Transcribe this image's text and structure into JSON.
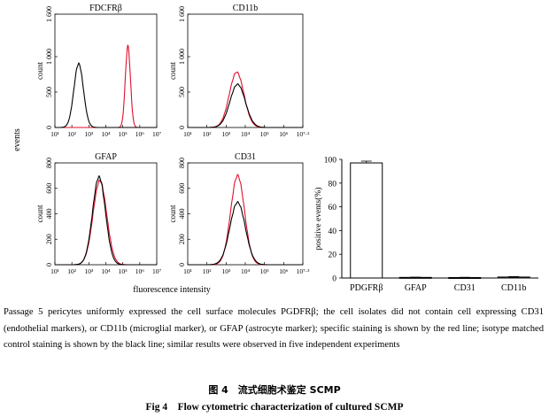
{
  "figure": {
    "y_axis_label": "events",
    "x_axis_label": "fluorescence intensity",
    "panels": [
      {
        "title": "FDCFRβ",
        "ylabel": "count",
        "yticks": [
          "0",
          "500",
          "1 000",
          "1 600"
        ],
        "xticks": [
          "10¹",
          "10²",
          "10³",
          "10⁴",
          "10⁵",
          "10⁶",
          "10⁷"
        ],
        "xlast_super": "7",
        "ymax": 1600,
        "yticks_values": [
          0,
          500,
          1000,
          1600
        ],
        "black_peak": {
          "center": 2.4,
          "width": 0.28,
          "height": 900
        },
        "red_peak": {
          "center": 5.3,
          "width": 0.15,
          "height": 1150
        }
      },
      {
        "title": "CD11b",
        "ylabel": "count",
        "yticks": [
          "0",
          "500",
          "1 000",
          "1 600"
        ],
        "xticks": [
          "10¹",
          "10²",
          "10³",
          "10⁴",
          "10⁵",
          "10⁶",
          "10⁷·²"
        ],
        "xlast_super": "7.2",
        "ymax": 1600,
        "yticks_values": [
          0,
          500,
          1000,
          1600
        ],
        "black_peak": {
          "center": 3.6,
          "width": 0.4,
          "height": 610
        },
        "red_peak": {
          "center": 3.55,
          "width": 0.38,
          "height": 780
        }
      },
      {
        "title": "GFAP",
        "ylabel": "count",
        "yticks": [
          "0",
          "200",
          "400",
          "600",
          "800"
        ],
        "xticks": [
          "10¹",
          "10²",
          "10³",
          "10⁴",
          "10⁵",
          "10⁶",
          "10⁷"
        ],
        "xlast_super": "7",
        "ymax": 800,
        "yticks_values": [
          0,
          200,
          400,
          600,
          800
        ],
        "black_peak": {
          "center": 3.6,
          "width": 0.38,
          "height": 690
        },
        "red_peak": {
          "center": 3.65,
          "width": 0.4,
          "height": 660
        }
      },
      {
        "title": "CD31",
        "ylabel": "count",
        "yticks": [
          "0",
          "200",
          "400",
          "600",
          "800"
        ],
        "xticks": [
          "10¹",
          "10²",
          "10³",
          "10⁴",
          "10⁵",
          "10⁶",
          "10⁷·³"
        ],
        "xlast_super": "7.3",
        "ymax": 800,
        "yticks_values": [
          0,
          200,
          400,
          600,
          800
        ],
        "black_peak": {
          "center": 3.6,
          "width": 0.4,
          "height": 490
        },
        "red_peak": {
          "center": 3.6,
          "width": 0.36,
          "height": 700
        }
      }
    ],
    "colors": {
      "red_line": "#e0102e",
      "black_line": "#000000"
    }
  },
  "chart_data": {
    "type": "bar",
    "categories": [
      "PDGFRβ",
      "GFAP",
      "CD31",
      "CD11b"
    ],
    "values": [
      97,
      0.5,
      0.4,
      0.8
    ],
    "errors": [
      1.5,
      0.2,
      0.2,
      0.4
    ],
    "ylabel": "positive events(%)",
    "yticks": [
      "0",
      "20",
      "40",
      "60",
      "80",
      "100"
    ],
    "ylim": [
      0,
      100
    ]
  },
  "caption": {
    "body": "Passage 5 pericytes uniformly expressed the cell surface molecules PGDFRβ; the cell isolates did not contain cell expressing CD31 (endothelial markers), or CD11b (microglial marker), or GFAP (astrocyte marker); specific staining is shown by the red line; isotype matched control staining is shown by the black line; similar results were observed in five independent experiments",
    "cn": "图 4　流式细胞术鉴定 SCMP",
    "en": "Fig 4　Flow cytometric characterization of cultured SCMP"
  }
}
